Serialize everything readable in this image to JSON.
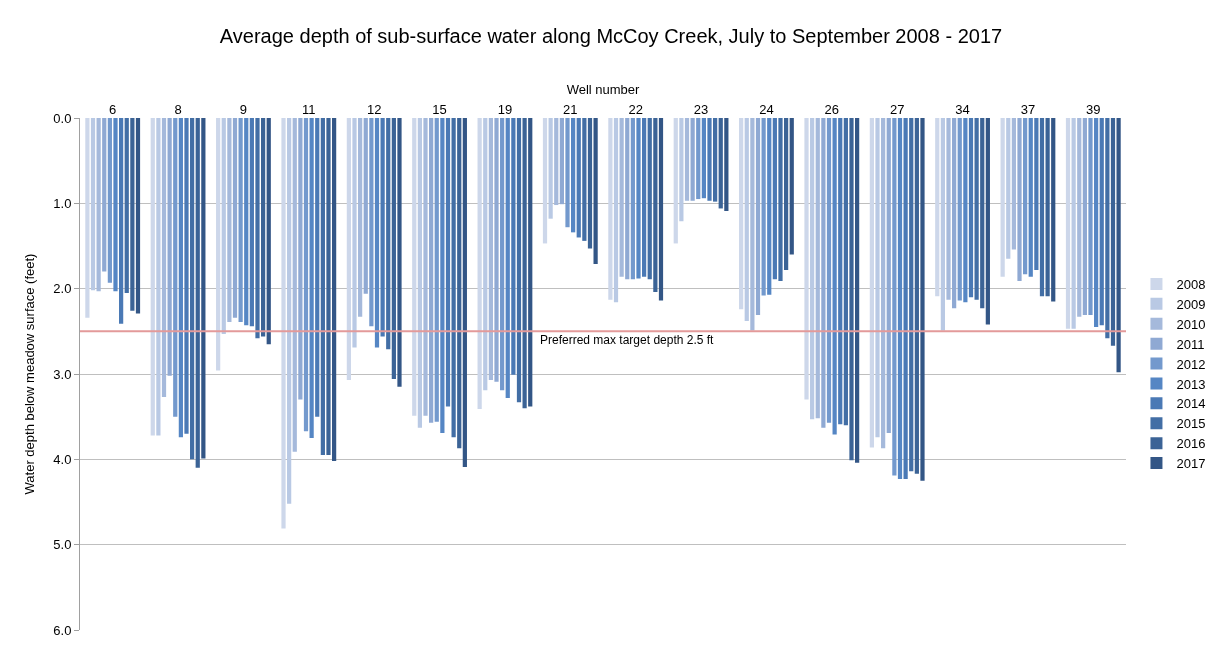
{
  "chart_data": {
    "type": "bar",
    "title": "Average depth of sub-surface water along McCoy Creek, July to September 2008 - 2017",
    "xlabel": "Well number",
    "ylabel": "Water depth below meadow surface (feet)",
    "categories": [
      "6",
      "8",
      "9",
      "11",
      "12",
      "15",
      "19",
      "21",
      "22",
      "23",
      "24",
      "26",
      "27",
      "34",
      "37",
      "39"
    ],
    "series": [
      {
        "name": "2008",
        "color": "#cdd7ea",
        "values": [
          2.34,
          3.72,
          2.96,
          4.81,
          3.07,
          3.49,
          3.41,
          1.47,
          2.13,
          1.47,
          2.24,
          3.3,
          3.86,
          2.09,
          1.86,
          2.47
        ]
      },
      {
        "name": "2009",
        "color": "#b9c9e4",
        "values": [
          2.02,
          3.72,
          2.53,
          4.52,
          2.69,
          3.63,
          3.19,
          1.18,
          2.16,
          1.21,
          2.38,
          3.53,
          3.74,
          2.49,
          1.65,
          2.47
        ]
      },
      {
        "name": "2010",
        "color": "#a5b9db",
        "values": [
          2.03,
          3.27,
          2.39,
          3.91,
          2.33,
          3.49,
          3.07,
          1.02,
          1.86,
          0.97,
          2.49,
          3.52,
          3.87,
          2.13,
          1.54,
          2.33
        ]
      },
      {
        "name": "2011",
        "color": "#8fa9d3",
        "values": [
          1.8,
          3.02,
          2.34,
          3.3,
          2.06,
          3.57,
          3.09,
          1.01,
          1.89,
          0.97,
          2.31,
          3.63,
          3.69,
          2.23,
          1.91,
          2.31
        ]
      },
      {
        "name": "2012",
        "color": "#7399cd",
        "values": [
          1.93,
          3.5,
          2.39,
          3.67,
          2.44,
          3.56,
          3.19,
          1.28,
          1.89,
          0.95,
          2.08,
          3.57,
          4.19,
          2.14,
          1.83,
          2.31
        ]
      },
      {
        "name": "2013",
        "color": "#5586c4",
        "values": [
          2.03,
          3.74,
          2.43,
          3.75,
          2.69,
          3.69,
          3.28,
          1.34,
          1.88,
          0.94,
          2.07,
          3.71,
          4.23,
          2.16,
          1.86,
          2.45
        ]
      },
      {
        "name": "2014",
        "color": "#4a79b5",
        "values": [
          2.41,
          3.7,
          2.44,
          3.5,
          2.56,
          3.38,
          3.01,
          1.4,
          1.86,
          0.97,
          1.89,
          3.59,
          4.23,
          2.1,
          1.78,
          2.43
        ]
      },
      {
        "name": "2015",
        "color": "#426ea5",
        "values": [
          2.05,
          4.0,
          2.58,
          3.95,
          2.71,
          3.74,
          3.33,
          1.44,
          1.89,
          0.98,
          1.91,
          3.6,
          4.14,
          2.13,
          2.09,
          2.58
        ]
      },
      {
        "name": "2016",
        "color": "#3b6396",
        "values": [
          2.26,
          4.1,
          2.56,
          3.95,
          3.06,
          3.87,
          3.4,
          1.53,
          2.04,
          1.06,
          1.78,
          4.01,
          4.17,
          2.23,
          2.09,
          2.67
        ]
      },
      {
        "name": "2017",
        "color": "#335686",
        "values": [
          2.29,
          3.99,
          2.65,
          4.02,
          3.15,
          4.09,
          3.38,
          1.71,
          2.14,
          1.09,
          1.6,
          4.04,
          4.25,
          2.42,
          2.15,
          2.98
        ]
      }
    ],
    "ylim": [
      6,
      0
    ],
    "yticks": [
      {
        "value": 0,
        "label": "0.0"
      },
      {
        "value": 1,
        "label": "1.0"
      },
      {
        "value": 2,
        "label": "2.0"
      },
      {
        "value": 3,
        "label": "3.0"
      },
      {
        "value": 4,
        "label": "4.0"
      },
      {
        "value": 5,
        "label": "5.0"
      },
      {
        "value": 6,
        "label": "6.0"
      }
    ],
    "ref_lines": [
      {
        "axis": "y",
        "value": 2.5,
        "label": "Preferred max target depth 2.5 ft",
        "color": "#e39a9a"
      }
    ],
    "grid": "y",
    "legend": "right"
  }
}
